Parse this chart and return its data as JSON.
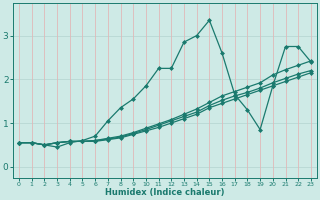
{
  "xlabel": "Humidex (Indice chaleur)",
  "background_color": "#ceeae6",
  "grid_color_h": "#b8d8d4",
  "grid_color_v": "#e0b8b8",
  "line_color": "#1a7a6e",
  "xlim": [
    -0.5,
    23.5
  ],
  "ylim": [
    -0.25,
    3.75
  ],
  "xticks": [
    0,
    1,
    2,
    3,
    4,
    5,
    6,
    7,
    8,
    9,
    10,
    11,
    12,
    13,
    14,
    15,
    16,
    17,
    18,
    19,
    20,
    21,
    22,
    23
  ],
  "yticks": [
    0,
    1,
    2,
    3
  ],
  "series": [
    [
      0.55,
      0.55,
      0.5,
      0.45,
      0.55,
      0.6,
      0.7,
      1.05,
      1.35,
      1.55,
      1.85,
      2.25,
      2.25,
      2.85,
      3.0,
      3.35,
      2.6,
      1.65,
      1.3,
      0.85,
      1.85,
      2.75,
      2.75,
      2.4
    ],
    [
      0.55,
      0.55,
      0.5,
      0.55,
      0.58,
      0.58,
      0.6,
      0.65,
      0.7,
      0.78,
      0.88,
      0.98,
      1.08,
      1.2,
      1.32,
      1.47,
      1.62,
      1.72,
      1.82,
      1.92,
      2.1,
      2.22,
      2.32,
      2.42
    ],
    [
      0.55,
      0.55,
      0.5,
      0.55,
      0.58,
      0.58,
      0.6,
      0.63,
      0.68,
      0.76,
      0.85,
      0.95,
      1.05,
      1.15,
      1.25,
      1.4,
      1.52,
      1.62,
      1.7,
      1.8,
      1.92,
      2.02,
      2.12,
      2.2
    ],
    [
      0.55,
      0.55,
      0.5,
      0.55,
      0.58,
      0.58,
      0.58,
      0.62,
      0.66,
      0.74,
      0.82,
      0.9,
      1.0,
      1.1,
      1.2,
      1.35,
      1.45,
      1.55,
      1.65,
      1.75,
      1.85,
      1.95,
      2.05,
      2.15
    ]
  ]
}
